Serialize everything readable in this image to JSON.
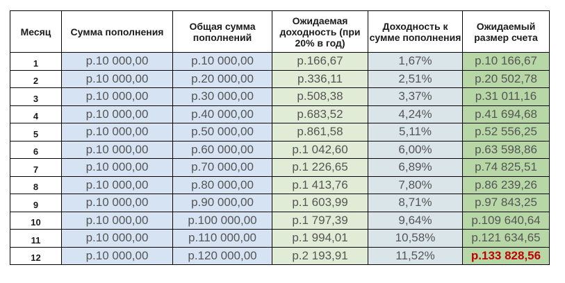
{
  "table": {
    "headers": [
      "Месяц",
      "Сумма пополнения",
      "Общая сумма пополнений",
      "Ожидаемая доходность (при 20% в год)",
      "Доходность к сумме пополнения",
      "Ожидаемый размер счета"
    ],
    "rows": [
      [
        "1",
        "р.10 000,00",
        "р.10 000,00",
        "р.166,67",
        "1,67%",
        "р.10 166,67"
      ],
      [
        "2",
        "р.10 000,00",
        "р.20 000,00",
        "р.336,11",
        "2,51%",
        "р.20 502,78"
      ],
      [
        "3",
        "р.10 000,00",
        "р.30 000,00",
        "р.508,38",
        "3,37%",
        "р.31 011,16"
      ],
      [
        "4",
        "р.10 000,00",
        "р.40 000,00",
        "р.683,52",
        "4,24%",
        "р.41 694,68"
      ],
      [
        "5",
        "р.10 000,00",
        "р.50 000,00",
        "р.861,58",
        "5,11%",
        "р.52 556,25"
      ],
      [
        "6",
        "р.10 000,00",
        "р.60 000,00",
        "р.1 042,60",
        "6,00%",
        "р.63 598,86"
      ],
      [
        "7",
        "р.10 000,00",
        "р.70 000,00",
        "р.1 226,65",
        "6,89%",
        "р.74 825,51"
      ],
      [
        "8",
        "р.10 000,00",
        "р.80 000,00",
        "р.1 413,76",
        "7,80%",
        "р.86 239,26"
      ],
      [
        "9",
        "р.10 000,00",
        "р.90 000,00",
        "р.1 603,99",
        "8,71%",
        "р.97 843,25"
      ],
      [
        "10",
        "р.10 000,00",
        "р.100 000,00",
        "р.1 797,39",
        "9,64%",
        "р.109 640,64"
      ],
      [
        "11",
        "р.10 000,00",
        "р.110 000,00",
        "р.1 994,01",
        "10,58%",
        "р.121 634,65"
      ],
      [
        "12",
        "р.10 000,00",
        "р.120 000,00",
        "р.2 193,91",
        "11,52%",
        "р.133 828,56"
      ]
    ]
  },
  "colors": {
    "deposit_cells": "#d6e3f3",
    "total_cells": "#d6e3f3",
    "yield_cells": "#e1ecd6",
    "percent_cells": "#dae5ea",
    "balance_cells": "#b7d7a6",
    "final_value_text": "#c00000"
  }
}
